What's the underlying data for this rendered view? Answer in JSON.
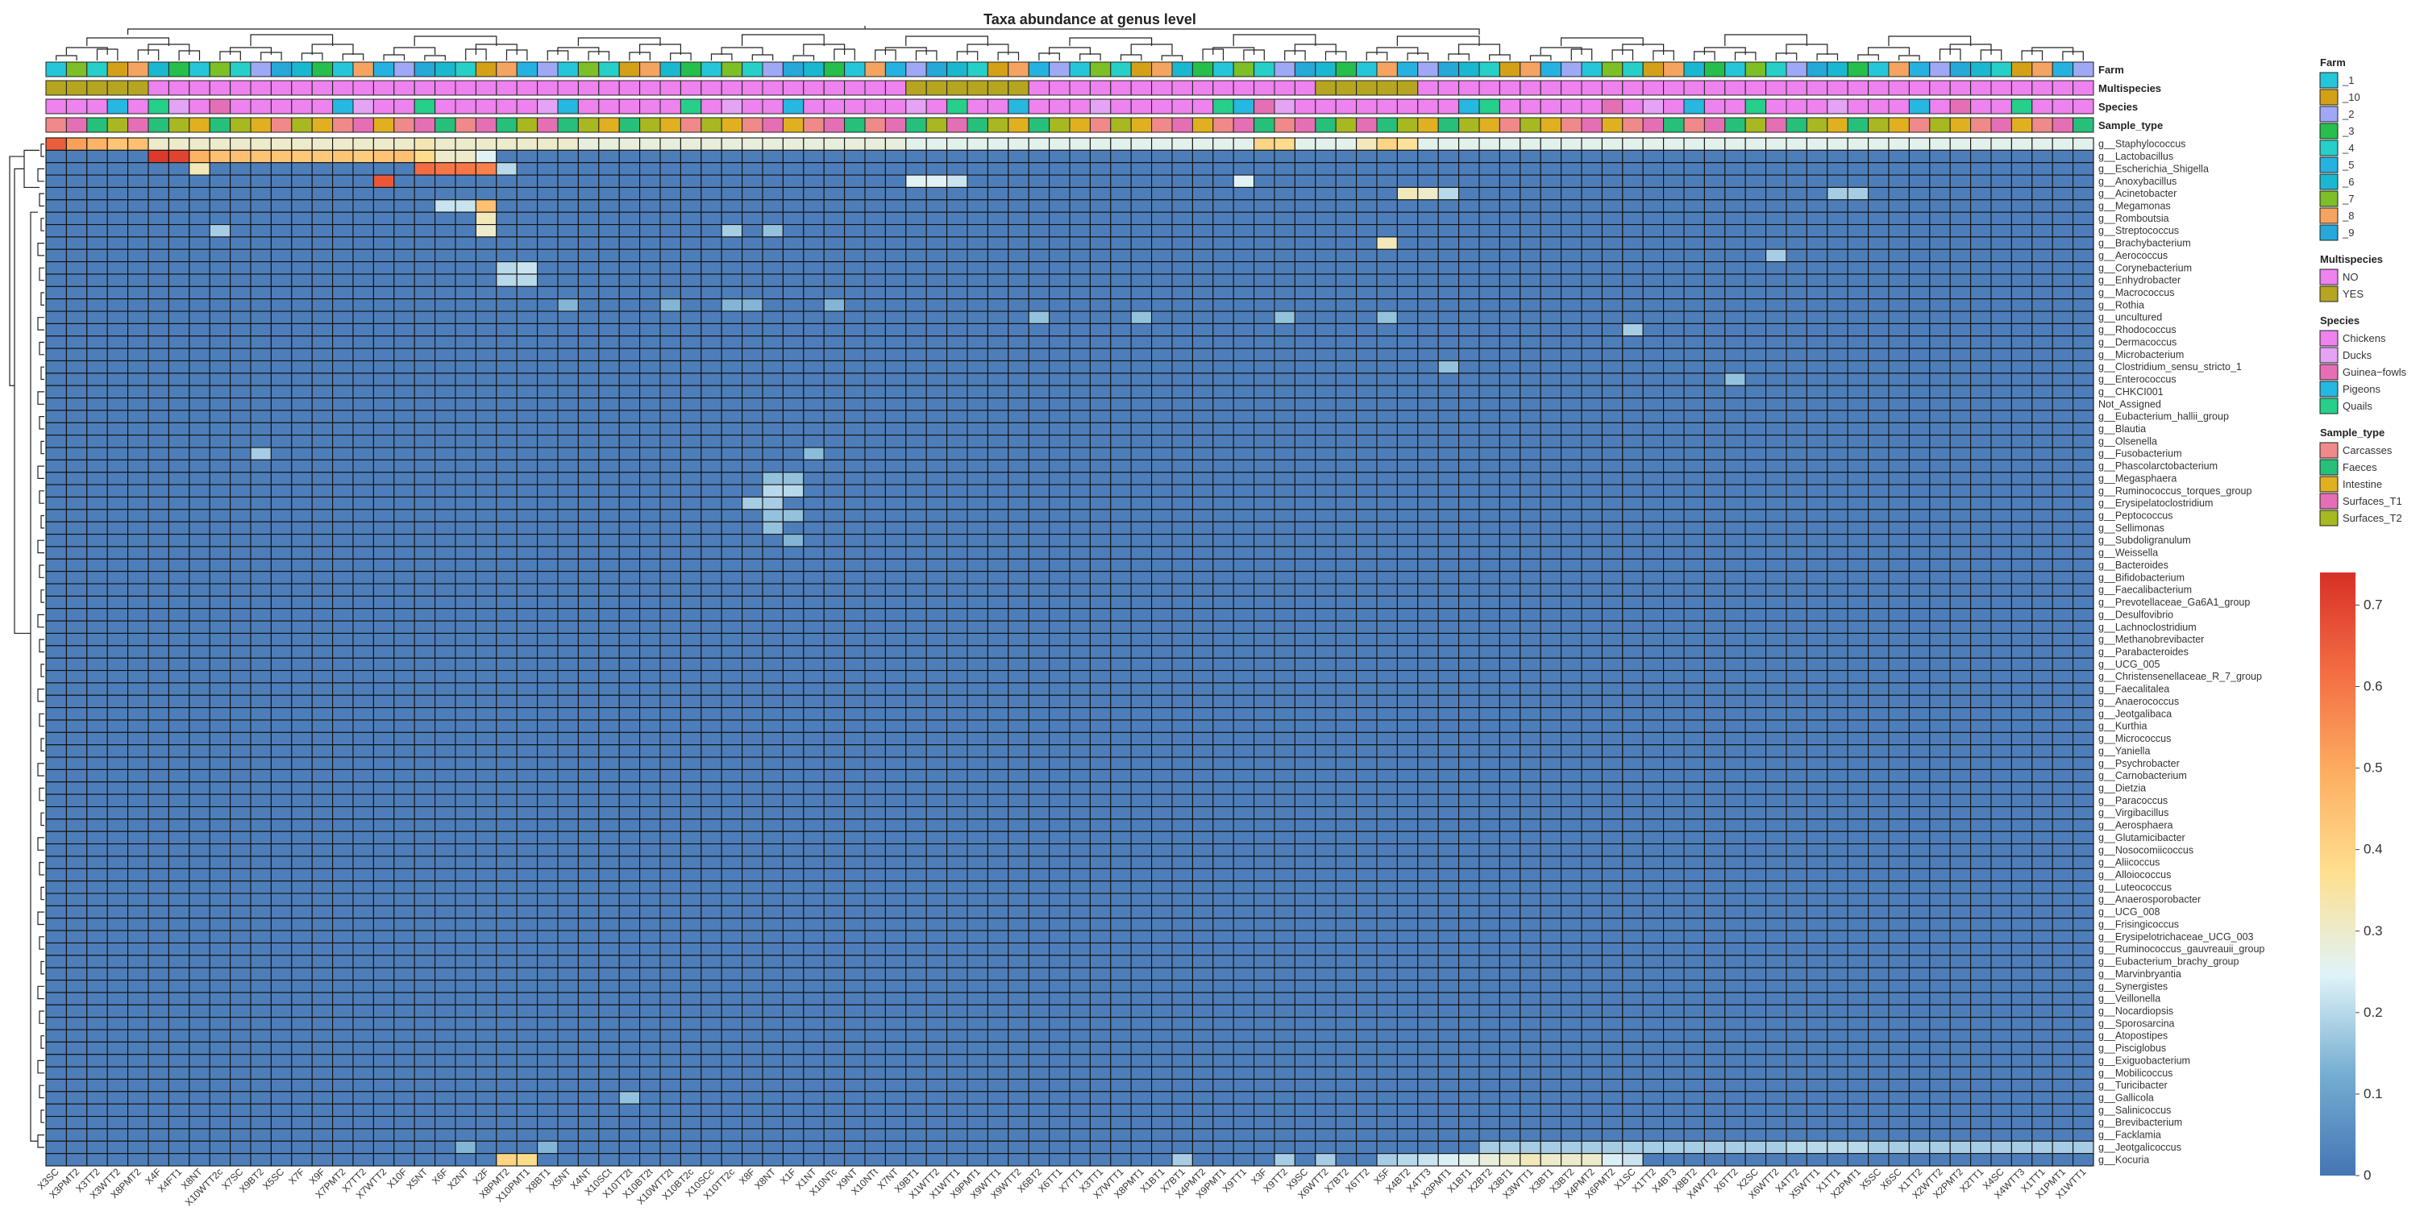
{
  "chart_data": {
    "type": "heatmap",
    "title": "Taxa abundance at genus level",
    "annotation_tracks": [
      "Farm",
      "Multispecies",
      "Species",
      "Sample_type"
    ],
    "samples": [
      "X3SC",
      "X3PMT2",
      "X3TT2",
      "X3WTT2",
      "X8PMT2",
      "X4F",
      "X4FT1",
      "X8NT",
      "X10WTT2c",
      "X7SC",
      "X9BT2",
      "X5SC",
      "X7F",
      "X9F",
      "X7PMT2",
      "X7TT2",
      "X7WTT2",
      "X10F",
      "X5NT",
      "X6F",
      "X2NT",
      "X2F",
      "X8PMT2",
      "X10PMT1",
      "X8BT1",
      "X5NT",
      "X4NT",
      "X10SCt",
      "X10TT2t",
      "X10BT2t",
      "X10WTT2t",
      "X10BT2c",
      "X10SCc",
      "X10TT2c",
      "X8F",
      "X8NT",
      "X1F",
      "X1NT",
      "X10NTc",
      "X9NT",
      "X10NTt",
      "X7NT",
      "X9BT1",
      "X1WTT2",
      "X1WTT1",
      "X9PMT1",
      "X9WTT1",
      "X9WTT2",
      "X6BT2",
      "X6TT1",
      "X7TT1",
      "X3TT1",
      "X7WTT1",
      "X8PMT1",
      "X1BT1",
      "X7BT1",
      "X4PMT2",
      "X9PMT1",
      "X9TT1",
      "X3F",
      "X9TT2",
      "X9SC",
      "X6WTT2",
      "X7BT2",
      "X6TT2",
      "X5F",
      "X4BT2",
      "X4TT3",
      "X3PMT1",
      "X1BT1",
      "X2BT2",
      "X3BT1",
      "X3WTT1",
      "X3BT1",
      "X3BT2",
      "X4PMT2",
      "X6PMT2",
      "X1SC",
      "X1TT2",
      "X4BT3",
      "X8BT2",
      "X4WTT2",
      "X6TT2",
      "X2SC",
      "X6WTT2",
      "X4TT2",
      "X5WTT1",
      "X1TT1",
      "X2PMT1",
      "X5SC",
      "X6SC",
      "X1TT2",
      "X2WTT2",
      "X2PMT2",
      "X2TT1",
      "X4SC",
      "X4WTT3",
      "X1TT1",
      "X1PMT1",
      "X1WTT1"
    ],
    "genera": [
      "g__Staphylococcus",
      "g__Lactobacillus",
      "g__Escherichia_Shigella",
      "g__Anoxybacillus",
      "g__Acinetobacter",
      "g__Megamonas",
      "g__Romboutsia",
      "g__Streptococcus",
      "g__Brachybacterium",
      "g__Aerococcus",
      "g__Corynebacterium",
      "g__Enhydrobacter",
      "g__Macrococcus",
      "g__Rothia",
      "g__uncultured",
      "g__Rhodococcus",
      "g__Dermacoccus",
      "g__Microbacterium",
      "g__Clostridium_sensu_stricto_1",
      "g__Enterococcus",
      "g__CHKCI001",
      "Not_Assigned",
      "g__Eubacterium_hallii_group",
      "g__Blautia",
      "g__Olsenella",
      "g__Fusobacterium",
      "g__Phascolarctobacterium",
      "g__Megasphaera",
      "g__Ruminococcus_torques_group",
      "g__Erysipelatoclostridium",
      "g__Peptococcus",
      "g__Sellimonas",
      "g__Subdoligranulum",
      "g__Weissella",
      "g__Bacteroides",
      "g__Bifidobacterium",
      "g__Faecalibacterium",
      "g__Prevotellaceae_Ga6A1_group",
      "g__Desulfovibrio",
      "g__Lachnoclostridium",
      "g__Methanobrevibacter",
      "g__Parabacteroides",
      "g__UCG_005",
      "g__Christensenellaceae_R_7_group",
      "g__Faecalitalea",
      "g__Anaerococcus",
      "g__Jeotgalibaca",
      "g__Kurthia",
      "g__Micrococcus",
      "g__Yaniella",
      "g__Psychrobacter",
      "g__Carnobacterium",
      "g__Dietzia",
      "g__Paracoccus",
      "g__Virgibacillus",
      "g__Aerosphaera",
      "g__Glutamicibacter",
      "g__Nosocomiicoccus",
      "g__Aliicoccus",
      "g__Alloiococcus",
      "g__Luteococcus",
      "g__Anaerosporobacter",
      "g__UCG_008",
      "g__Frisingicoccus",
      "g__Erysipelotrichaceae_UCG_003",
      "g__Ruminococcus_gauvreauii_group",
      "g__Eubacterium_brachy_group",
      "g__Marvinbryantia",
      "g__Synergistes",
      "g__Veillonella",
      "g__Nocardiopsis",
      "g__Sporosarcina",
      "g__Atopostipes",
      "g__Pisciglobus",
      "g__Exiguobacterium",
      "g__Mobilicoccus",
      "g__Turicibacter",
      "g__Gallicola",
      "g__Salinicoccus",
      "g__Brevibacterium",
      "g__Facklamia",
      "g__Jeotgalicoccus",
      "g__Kocuria"
    ],
    "background_value": 0.02,
    "cells": [
      [
        0,
        0,
        0.65
      ],
      [
        0,
        1,
        0.52
      ],
      [
        0,
        2,
        0.48
      ],
      [
        0,
        3,
        0.44
      ],
      [
        0,
        4,
        0.45
      ],
      [
        0,
        5,
        0.3
      ],
      [
        0,
        6,
        0.3
      ],
      [
        0,
        7,
        0.3
      ],
      [
        0,
        8,
        0.3
      ],
      [
        0,
        9,
        0.3
      ],
      [
        0,
        10,
        0.3
      ],
      [
        0,
        11,
        0.3
      ],
      [
        0,
        12,
        0.3
      ],
      [
        0,
        13,
        0.3
      ],
      [
        0,
        14,
        0.3
      ],
      [
        0,
        15,
        0.3
      ],
      [
        0,
        16,
        0.3
      ],
      [
        0,
        17,
        0.3
      ],
      [
        0,
        18,
        0.33
      ],
      [
        0,
        19,
        0.3
      ],
      [
        0,
        20,
        0.3
      ],
      [
        0,
        21,
        0.3
      ],
      [
        0,
        22,
        0.3
      ],
      [
        0,
        23,
        0.3
      ],
      [
        0,
        24,
        0.3
      ],
      [
        0,
        25,
        0.3
      ],
      [
        0,
        26,
        0.28
      ],
      [
        0,
        27,
        0.28
      ],
      [
        0,
        28,
        0.28
      ],
      [
        0,
        29,
        0.28
      ],
      [
        0,
        30,
        0.28
      ],
      [
        0,
        31,
        0.28
      ],
      [
        0,
        32,
        0.28
      ],
      [
        0,
        33,
        0.28
      ],
      [
        0,
        34,
        0.28
      ],
      [
        0,
        35,
        0.28
      ],
      [
        0,
        36,
        0.28
      ],
      [
        0,
        37,
        0.28
      ],
      [
        0,
        38,
        0.28
      ],
      [
        0,
        39,
        0.28
      ],
      [
        0,
        40,
        0.28
      ],
      [
        0,
        41,
        0.28
      ],
      [
        0,
        42,
        0.26
      ],
      [
        0,
        43,
        0.26
      ],
      [
        0,
        44,
        0.26
      ],
      [
        0,
        45,
        0.26
      ],
      [
        0,
        46,
        0.26
      ],
      [
        0,
        47,
        0.26
      ],
      [
        0,
        48,
        0.26
      ],
      [
        0,
        49,
        0.26
      ],
      [
        0,
        50,
        0.26
      ],
      [
        0,
        51,
        0.26
      ],
      [
        0,
        52,
        0.26
      ],
      [
        0,
        53,
        0.26
      ],
      [
        0,
        54,
        0.26
      ],
      [
        0,
        55,
        0.26
      ],
      [
        0,
        56,
        0.26
      ],
      [
        0,
        57,
        0.26
      ],
      [
        0,
        58,
        0.26
      ],
      [
        0,
        59,
        0.4
      ],
      [
        0,
        60,
        0.38
      ],
      [
        0,
        61,
        0.26
      ],
      [
        0,
        62,
        0.26
      ],
      [
        0,
        63,
        0.26
      ],
      [
        0,
        64,
        0.32
      ],
      [
        0,
        65,
        0.4
      ],
      [
        0,
        66,
        0.36
      ],
      [
        0,
        67,
        0.26
      ],
      [
        0,
        68,
        0.26
      ],
      [
        0,
        69,
        0.26
      ],
      [
        0,
        70,
        0.26
      ],
      [
        0,
        71,
        0.26
      ],
      [
        0,
        72,
        0.26
      ],
      [
        0,
        73,
        0.26
      ],
      [
        0,
        74,
        0.26
      ],
      [
        0,
        75,
        0.26
      ],
      [
        0,
        76,
        0.26
      ],
      [
        0,
        77,
        0.26
      ],
      [
        0,
        78,
        0.26
      ],
      [
        0,
        79,
        0.26
      ],
      [
        0,
        80,
        0.26
      ],
      [
        0,
        81,
        0.26
      ],
      [
        0,
        82,
        0.26
      ],
      [
        0,
        83,
        0.26
      ],
      [
        0,
        84,
        0.26
      ],
      [
        0,
        85,
        0.26
      ],
      [
        0,
        86,
        0.26
      ],
      [
        0,
        87,
        0.26
      ],
      [
        0,
        88,
        0.26
      ],
      [
        0,
        89,
        0.26
      ],
      [
        0,
        90,
        0.26
      ],
      [
        0,
        91,
        0.26
      ],
      [
        0,
        92,
        0.26
      ],
      [
        0,
        93,
        0.26
      ],
      [
        0,
        94,
        0.26
      ],
      [
        0,
        95,
        0.26
      ],
      [
        0,
        96,
        0.26
      ],
      [
        0,
        97,
        0.26
      ],
      [
        0,
        98,
        0.26
      ],
      [
        0,
        99,
        0.26
      ],
      [
        1,
        5,
        0.72
      ],
      [
        1,
        6,
        0.7
      ],
      [
        1,
        7,
        0.48
      ],
      [
        1,
        8,
        0.45
      ],
      [
        1,
        9,
        0.45
      ],
      [
        1,
        10,
        0.44
      ],
      [
        1,
        11,
        0.44
      ],
      [
        1,
        12,
        0.43
      ],
      [
        1,
        13,
        0.43
      ],
      [
        1,
        14,
        0.44
      ],
      [
        1,
        15,
        0.42
      ],
      [
        1,
        16,
        0.44
      ],
      [
        1,
        17,
        0.45
      ],
      [
        1,
        18,
        0.38
      ],
      [
        1,
        19,
        0.3
      ],
      [
        1,
        20,
        0.3
      ],
      [
        1,
        21,
        0.25
      ],
      [
        2,
        7,
        0.32
      ],
      [
        2,
        18,
        0.62
      ],
      [
        2,
        19,
        0.6
      ],
      [
        2,
        20,
        0.6
      ],
      [
        2,
        21,
        0.58
      ],
      [
        2,
        22,
        0.2
      ],
      [
        3,
        16,
        0.66
      ],
      [
        3,
        42,
        0.25
      ],
      [
        3,
        43,
        0.25
      ],
      [
        3,
        44,
        0.22
      ],
      [
        3,
        58,
        0.25
      ],
      [
        4,
        66,
        0.32
      ],
      [
        4,
        67,
        0.3
      ],
      [
        4,
        68,
        0.2
      ],
      [
        4,
        87,
        0.18
      ],
      [
        4,
        88,
        0.18
      ],
      [
        5,
        19,
        0.22
      ],
      [
        5,
        20,
        0.22
      ],
      [
        5,
        21,
        0.45
      ],
      [
        6,
        21,
        0.32
      ],
      [
        7,
        8,
        0.18
      ],
      [
        7,
        21,
        0.3
      ],
      [
        7,
        33,
        0.18
      ],
      [
        7,
        35,
        0.16
      ],
      [
        8,
        65,
        0.32
      ],
      [
        9,
        84,
        0.18
      ],
      [
        10,
        22,
        0.2
      ],
      [
        10,
        23,
        0.22
      ],
      [
        11,
        22,
        0.2
      ],
      [
        11,
        23,
        0.2
      ],
      [
        13,
        25,
        0.14
      ],
      [
        13,
        30,
        0.14
      ],
      [
        13,
        33,
        0.14
      ],
      [
        13,
        34,
        0.14
      ],
      [
        13,
        38,
        0.14
      ],
      [
        14,
        48,
        0.16
      ],
      [
        14,
        53,
        0.16
      ],
      [
        14,
        60,
        0.16
      ],
      [
        14,
        65,
        0.16
      ],
      [
        15,
        77,
        0.18
      ],
      [
        18,
        68,
        0.16
      ],
      [
        19,
        82,
        0.16
      ],
      [
        25,
        10,
        0.18
      ],
      [
        25,
        37,
        0.15
      ],
      [
        27,
        35,
        0.16
      ],
      [
        27,
        36,
        0.16
      ],
      [
        28,
        35,
        0.2
      ],
      [
        28,
        36,
        0.2
      ],
      [
        29,
        34,
        0.18
      ],
      [
        29,
        35,
        0.18
      ],
      [
        30,
        35,
        0.16
      ],
      [
        30,
        36,
        0.16
      ],
      [
        31,
        35,
        0.16
      ],
      [
        32,
        36,
        0.14
      ],
      [
        77,
        28,
        0.16
      ],
      [
        81,
        20,
        0.14
      ],
      [
        81,
        24,
        0.14
      ],
      [
        81,
        70,
        0.18
      ],
      [
        81,
        71,
        0.18
      ],
      [
        81,
        72,
        0.18
      ],
      [
        81,
        73,
        0.18
      ],
      [
        81,
        74,
        0.18
      ],
      [
        81,
        75,
        0.18
      ],
      [
        81,
        76,
        0.18
      ],
      [
        81,
        77,
        0.18
      ],
      [
        81,
        78,
        0.18
      ],
      [
        81,
        79,
        0.18
      ],
      [
        81,
        80,
        0.18
      ],
      [
        81,
        81,
        0.18
      ],
      [
        81,
        82,
        0.18
      ],
      [
        81,
        83,
        0.18
      ],
      [
        81,
        84,
        0.18
      ],
      [
        81,
        85,
        0.2
      ],
      [
        81,
        86,
        0.2
      ],
      [
        81,
        87,
        0.2
      ],
      [
        81,
        88,
        0.2
      ],
      [
        81,
        89,
        0.18
      ],
      [
        81,
        90,
        0.18
      ],
      [
        81,
        91,
        0.18
      ],
      [
        81,
        92,
        0.18
      ],
      [
        81,
        93,
        0.18
      ],
      [
        81,
        94,
        0.18
      ],
      [
        81,
        95,
        0.18
      ],
      [
        81,
        96,
        0.18
      ],
      [
        81,
        97,
        0.18
      ],
      [
        81,
        98,
        0.18
      ],
      [
        81,
        99,
        0.18
      ],
      [
        82,
        22,
        0.4
      ],
      [
        82,
        23,
        0.38
      ],
      [
        82,
        55,
        0.18
      ],
      [
        82,
        60,
        0.18
      ],
      [
        82,
        62,
        0.18
      ],
      [
        82,
        65,
        0.18
      ],
      [
        82,
        66,
        0.2
      ],
      [
        82,
        67,
        0.22
      ],
      [
        82,
        68,
        0.24
      ],
      [
        82,
        69,
        0.26
      ],
      [
        82,
        70,
        0.28
      ],
      [
        82,
        71,
        0.3
      ],
      [
        82,
        72,
        0.32
      ],
      [
        82,
        73,
        0.3
      ],
      [
        82,
        74,
        0.3
      ],
      [
        82,
        75,
        0.3
      ],
      [
        82,
        76,
        0.24
      ],
      [
        82,
        77,
        0.22
      ]
    ],
    "colorscale": {
      "min": 0,
      "max": 0.74,
      "ticks": [
        0,
        0.1,
        0.2,
        0.3,
        0.4,
        0.5,
        0.6,
        0.7
      ],
      "stops": [
        "#4575b4",
        "#74add1",
        "#e0f3f8",
        "#fee090",
        "#fdae61",
        "#f46d43",
        "#d73027"
      ]
    },
    "legends": [
      {
        "title": "Farm",
        "items": [
          {
            "label": "_1",
            "color": "#26c6da"
          },
          {
            "label": "_10",
            "color": "#d4a017"
          },
          {
            "label": "_2",
            "color": "#9fa8f5"
          },
          {
            "label": "_3",
            "color": "#26bf4c"
          },
          {
            "label": "_4",
            "color": "#26d0c8"
          },
          {
            "label": "_5",
            "color": "#26b2e0"
          },
          {
            "label": "_6",
            "color": "#1ab8d0"
          },
          {
            "label": "_7",
            "color": "#7cbf26"
          },
          {
            "label": "_8",
            "color": "#f4a460"
          },
          {
            "label": "_9",
            "color": "#26a8d8"
          }
        ]
      },
      {
        "title": "Multispecies",
        "items": [
          {
            "label": "NO",
            "color": "#ee82ee"
          },
          {
            "label": "YES",
            "color": "#b5a520"
          }
        ]
      },
      {
        "title": "Species",
        "items": [
          {
            "label": "Chickens",
            "color": "#ee82ee"
          },
          {
            "label": "Ducks",
            "color": "#e5a3f5"
          },
          {
            "label": "Guinea−fowls",
            "color": "#e56fb5"
          },
          {
            "label": "Pigeons",
            "color": "#26b8e0"
          },
          {
            "label": "Quails",
            "color": "#26cf8a"
          }
        ]
      },
      {
        "title": "Sample_type",
        "items": [
          {
            "label": "Carcasses",
            "color": "#f08a8a"
          },
          {
            "label": "Faeces",
            "color": "#26c07a"
          },
          {
            "label": "Intestine",
            "color": "#e0b020"
          },
          {
            "label": "Surfaces_T1",
            "color": "#e56fb5"
          },
          {
            "label": "Surfaces_T2",
            "color": "#a8b820"
          }
        ]
      }
    ]
  }
}
